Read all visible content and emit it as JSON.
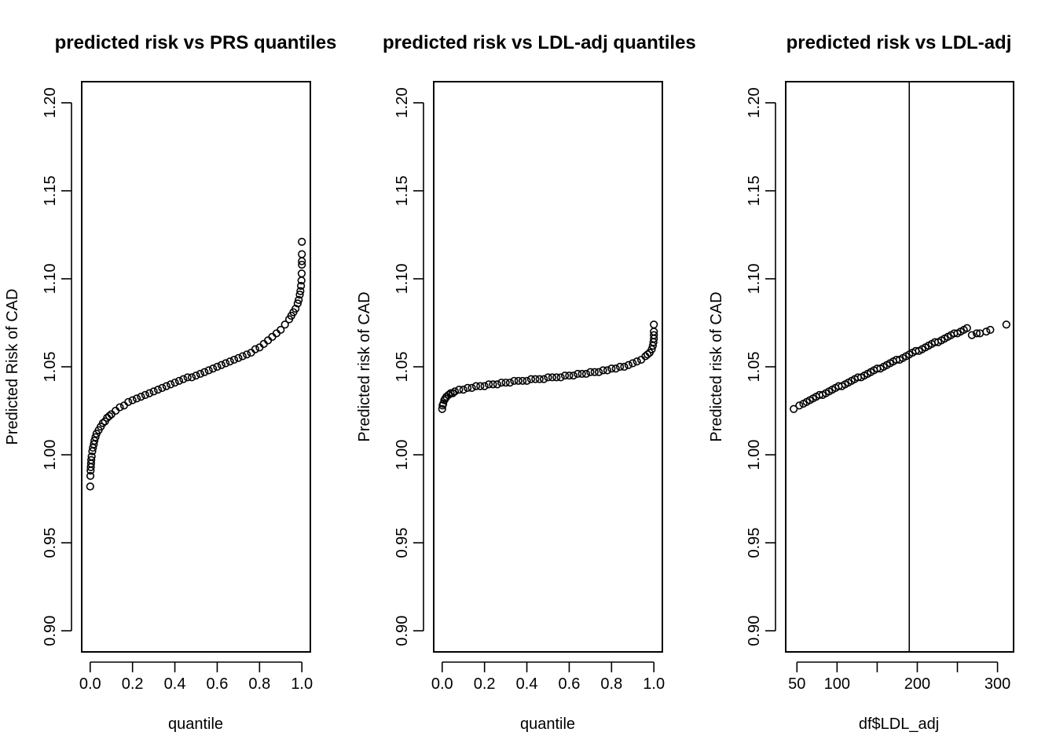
{
  "chart_data": [
    {
      "type": "scatter",
      "title": "predicted risk vs PRS quantiles",
      "xlabel": "quantile",
      "ylabel": "Predicted Risk of CAD",
      "xlim": [
        -0.04,
        1.04
      ],
      "ylim": [
        0.888,
        1.212
      ],
      "xticks": [
        0,
        0.2,
        0.4,
        0.6,
        0.8,
        1
      ],
      "xtick_labels": [
        "0.0",
        "0.2",
        "0.4",
        "0.6",
        "0.8",
        "1.0"
      ],
      "yticks": [
        0.9,
        0.95,
        1.0,
        1.05,
        1.1,
        1.15,
        1.2
      ],
      "ytick_labels": [
        "0.90",
        "0.95",
        "1.00",
        "1.05",
        "1.10",
        "1.15",
        "1.20"
      ],
      "grid": false,
      "points": [
        [
          0.0,
          0.982
        ],
        [
          0.001,
          0.988
        ],
        [
          0.002,
          0.991
        ],
        [
          0.003,
          0.993
        ],
        [
          0.004,
          0.995
        ],
        [
          0.005,
          0.997
        ],
        [
          0.007,
          0.999
        ],
        [
          0.01,
          1.002
        ],
        [
          0.013,
          1.004
        ],
        [
          0.017,
          1.006
        ],
        [
          0.02,
          1.008
        ],
        [
          0.025,
          1.01
        ],
        [
          0.03,
          1.012
        ],
        [
          0.04,
          1.014
        ],
        [
          0.05,
          1.016
        ],
        [
          0.06,
          1.018
        ],
        [
          0.07,
          1.019
        ],
        [
          0.08,
          1.021
        ],
        [
          0.09,
          1.022
        ],
        [
          0.1,
          1.023
        ],
        [
          0.12,
          1.025
        ],
        [
          0.14,
          1.027
        ],
        [
          0.16,
          1.028
        ],
        [
          0.18,
          1.03
        ],
        [
          0.2,
          1.031
        ],
        [
          0.22,
          1.032
        ],
        [
          0.24,
          1.033
        ],
        [
          0.26,
          1.034
        ],
        [
          0.28,
          1.035
        ],
        [
          0.3,
          1.036
        ],
        [
          0.32,
          1.037
        ],
        [
          0.34,
          1.038
        ],
        [
          0.36,
          1.039
        ],
        [
          0.38,
          1.04
        ],
        [
          0.4,
          1.041
        ],
        [
          0.42,
          1.042
        ],
        [
          0.44,
          1.043
        ],
        [
          0.46,
          1.044
        ],
        [
          0.48,
          1.044
        ],
        [
          0.5,
          1.045
        ],
        [
          0.52,
          1.046
        ],
        [
          0.54,
          1.047
        ],
        [
          0.56,
          1.048
        ],
        [
          0.58,
          1.049
        ],
        [
          0.6,
          1.05
        ],
        [
          0.62,
          1.051
        ],
        [
          0.64,
          1.052
        ],
        [
          0.66,
          1.053
        ],
        [
          0.68,
          1.054
        ],
        [
          0.7,
          1.055
        ],
        [
          0.72,
          1.056
        ],
        [
          0.74,
          1.057
        ],
        [
          0.76,
          1.058
        ],
        [
          0.78,
          1.06
        ],
        [
          0.8,
          1.061
        ],
        [
          0.82,
          1.063
        ],
        [
          0.84,
          1.065
        ],
        [
          0.86,
          1.067
        ],
        [
          0.88,
          1.069
        ],
        [
          0.9,
          1.071
        ],
        [
          0.92,
          1.074
        ],
        [
          0.94,
          1.077
        ],
        [
          0.95,
          1.079
        ],
        [
          0.96,
          1.081
        ],
        [
          0.97,
          1.083
        ],
        [
          0.98,
          1.086
        ],
        [
          0.985,
          1.088
        ],
        [
          0.99,
          1.091
        ],
        [
          0.993,
          1.093
        ],
        [
          0.996,
          1.096
        ],
        [
          0.998,
          1.099
        ],
        [
          0.999,
          1.103
        ],
        [
          1.0,
          1.108
        ],
        [
          1.0,
          1.11
        ],
        [
          1.0,
          1.114
        ],
        [
          1.0,
          1.121
        ]
      ]
    },
    {
      "type": "scatter",
      "title": "predicted risk vs LDL-adj quantiles",
      "xlabel": "quantile",
      "ylabel": "Predicted risk of CAD",
      "xlim": [
        -0.04,
        1.04
      ],
      "ylim": [
        0.888,
        1.212
      ],
      "xticks": [
        0,
        0.2,
        0.4,
        0.6,
        0.8,
        1
      ],
      "xtick_labels": [
        "0.0",
        "0.2",
        "0.4",
        "0.6",
        "0.8",
        "1.0"
      ],
      "yticks": [
        0.9,
        0.95,
        1.0,
        1.05,
        1.1,
        1.15,
        1.2
      ],
      "ytick_labels": [
        "0.90",
        "0.95",
        "1.00",
        "1.05",
        "1.10",
        "1.15",
        "1.20"
      ],
      "grid": false,
      "points": [
        [
          0.0,
          1.026
        ],
        [
          0.002,
          1.028
        ],
        [
          0.005,
          1.029
        ],
        [
          0.01,
          1.031
        ],
        [
          0.015,
          1.032
        ],
        [
          0.02,
          1.033
        ],
        [
          0.03,
          1.034
        ],
        [
          0.04,
          1.035
        ],
        [
          0.05,
          1.035
        ],
        [
          0.06,
          1.036
        ],
        [
          0.08,
          1.037
        ],
        [
          0.1,
          1.037
        ],
        [
          0.12,
          1.038
        ],
        [
          0.14,
          1.038
        ],
        [
          0.16,
          1.039
        ],
        [
          0.18,
          1.039
        ],
        [
          0.2,
          1.039
        ],
        [
          0.22,
          1.04
        ],
        [
          0.24,
          1.04
        ],
        [
          0.26,
          1.04
        ],
        [
          0.28,
          1.041
        ],
        [
          0.3,
          1.041
        ],
        [
          0.32,
          1.041
        ],
        [
          0.34,
          1.042
        ],
        [
          0.36,
          1.042
        ],
        [
          0.38,
          1.042
        ],
        [
          0.4,
          1.042
        ],
        [
          0.42,
          1.043
        ],
        [
          0.44,
          1.043
        ],
        [
          0.46,
          1.043
        ],
        [
          0.48,
          1.043
        ],
        [
          0.5,
          1.044
        ],
        [
          0.52,
          1.044
        ],
        [
          0.54,
          1.044
        ],
        [
          0.56,
          1.044
        ],
        [
          0.58,
          1.045
        ],
        [
          0.6,
          1.045
        ],
        [
          0.62,
          1.045
        ],
        [
          0.64,
          1.046
        ],
        [
          0.66,
          1.046
        ],
        [
          0.68,
          1.046
        ],
        [
          0.7,
          1.047
        ],
        [
          0.72,
          1.047
        ],
        [
          0.74,
          1.047
        ],
        [
          0.76,
          1.048
        ],
        [
          0.78,
          1.048
        ],
        [
          0.8,
          1.049
        ],
        [
          0.82,
          1.049
        ],
        [
          0.84,
          1.05
        ],
        [
          0.86,
          1.05
        ],
        [
          0.88,
          1.051
        ],
        [
          0.9,
          1.052
        ],
        [
          0.92,
          1.053
        ],
        [
          0.94,
          1.054
        ],
        [
          0.96,
          1.056
        ],
        [
          0.97,
          1.057
        ],
        [
          0.98,
          1.058
        ],
        [
          0.99,
          1.06
        ],
        [
          0.995,
          1.062
        ],
        [
          0.998,
          1.064
        ],
        [
          1.0,
          1.066
        ],
        [
          1.0,
          1.068
        ],
        [
          1.0,
          1.07
        ],
        [
          1.0,
          1.074
        ]
      ]
    },
    {
      "type": "scatter",
      "title": "predicted risk vs LDL-adj",
      "xlabel": "df$LDL_adj",
      "ylabel": "Predicted risk of CAD",
      "xlim": [
        36,
        320
      ],
      "ylim": [
        0.888,
        1.212
      ],
      "xticks": [
        50,
        100,
        150,
        200,
        250,
        300
      ],
      "xtick_labels": [
        "50",
        "100",
        "",
        "200",
        "",
        "300"
      ],
      "yticks": [
        0.9,
        0.95,
        1.0,
        1.05,
        1.1,
        1.15,
        1.2
      ],
      "ytick_labels": [
        "0.90",
        "0.95",
        "1.00",
        "1.05",
        "1.10",
        "1.15",
        "1.20"
      ],
      "grid": false,
      "vline": 190,
      "points": [
        [
          46,
          1.026
        ],
        [
          53,
          1.028
        ],
        [
          58,
          1.029
        ],
        [
          62,
          1.03
        ],
        [
          66,
          1.031
        ],
        [
          70,
          1.032
        ],
        [
          74,
          1.033
        ],
        [
          78,
          1.034
        ],
        [
          82,
          1.034
        ],
        [
          86,
          1.035
        ],
        [
          90,
          1.036
        ],
        [
          94,
          1.037
        ],
        [
          98,
          1.038
        ],
        [
          102,
          1.039
        ],
        [
          106,
          1.039
        ],
        [
          110,
          1.04
        ],
        [
          114,
          1.041
        ],
        [
          118,
          1.042
        ],
        [
          122,
          1.043
        ],
        [
          126,
          1.044
        ],
        [
          130,
          1.044
        ],
        [
          134,
          1.045
        ],
        [
          138,
          1.046
        ],
        [
          142,
          1.047
        ],
        [
          146,
          1.048
        ],
        [
          150,
          1.049
        ],
        [
          154,
          1.049
        ],
        [
          158,
          1.05
        ],
        [
          162,
          1.051
        ],
        [
          166,
          1.052
        ],
        [
          170,
          1.053
        ],
        [
          174,
          1.054
        ],
        [
          178,
          1.054
        ],
        [
          182,
          1.055
        ],
        [
          186,
          1.056
        ],
        [
          190,
          1.057
        ],
        [
          194,
          1.058
        ],
        [
          198,
          1.059
        ],
        [
          202,
          1.059
        ],
        [
          206,
          1.06
        ],
        [
          210,
          1.061
        ],
        [
          214,
          1.062
        ],
        [
          218,
          1.063
        ],
        [
          222,
          1.064
        ],
        [
          226,
          1.064
        ],
        [
          230,
          1.065
        ],
        [
          234,
          1.066
        ],
        [
          238,
          1.067
        ],
        [
          242,
          1.068
        ],
        [
          246,
          1.069
        ],
        [
          250,
          1.069
        ],
        [
          254,
          1.07
        ],
        [
          258,
          1.071
        ],
        [
          262,
          1.072
        ],
        [
          268,
          1.068
        ],
        [
          274,
          1.069
        ],
        [
          278,
          1.069
        ],
        [
          286,
          1.07
        ],
        [
          291,
          1.071
        ],
        [
          311,
          1.074
        ]
      ]
    }
  ]
}
